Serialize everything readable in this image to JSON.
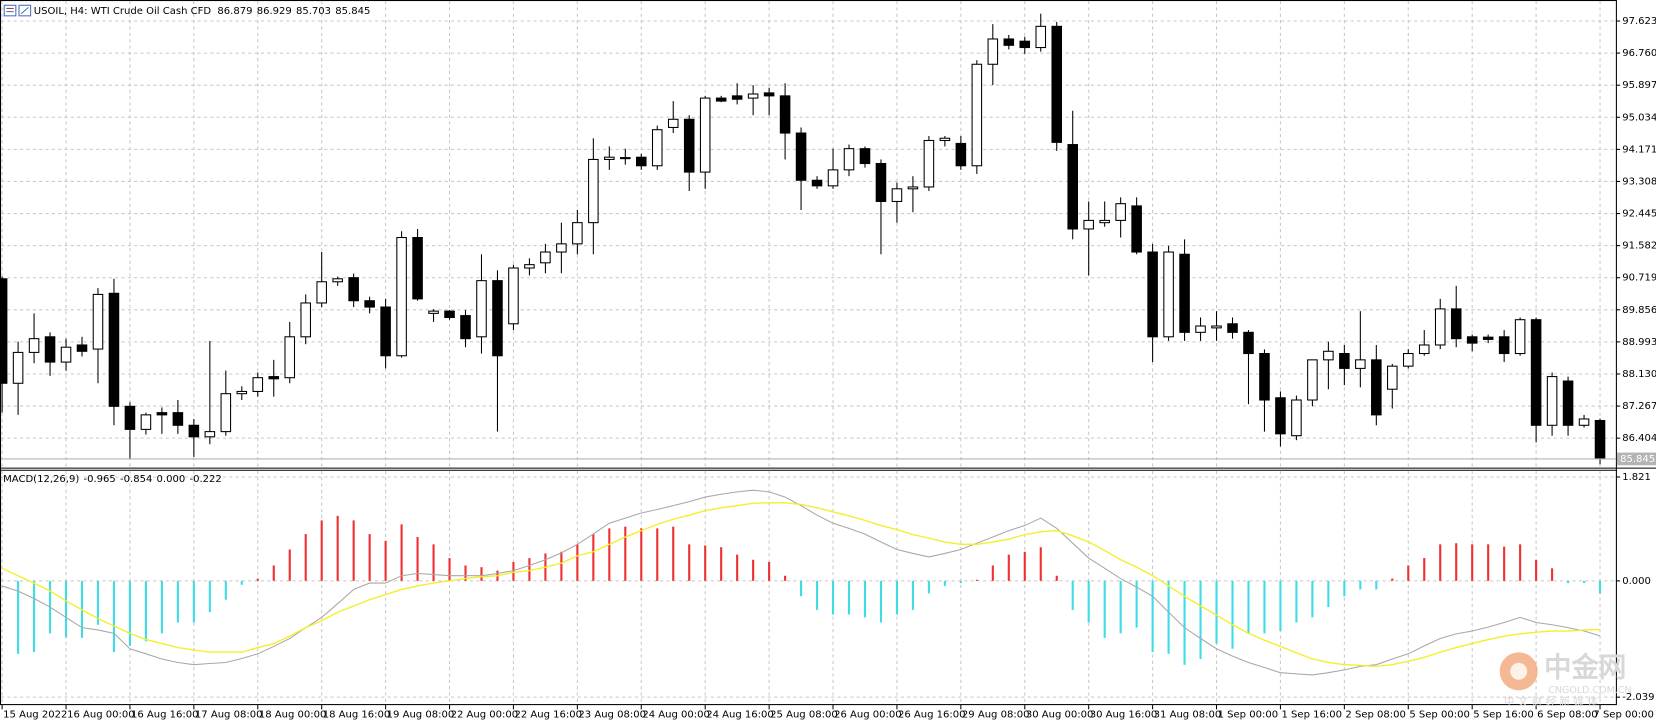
{
  "chart_data": [
    {
      "type": "candlestick",
      "title": "USOIL, H4: WTI Crude Oil Cash CFD",
      "categories": [
        "15 Aug 2022",
        null,
        null,
        null,
        "16 Aug 00:00",
        null,
        null,
        null,
        "16 Aug 16:00",
        null,
        null,
        null,
        "17 Aug 08:00",
        null,
        null,
        null,
        "18 Aug 00:00",
        null,
        null,
        null,
        "18 Aug 16:00",
        null,
        null,
        null,
        "19 Aug 08:00",
        null,
        null,
        null,
        "22 Aug 00:00",
        null,
        null,
        null,
        "22 Aug 16:00",
        null,
        null,
        null,
        "23 Aug 08:00",
        null,
        null,
        null,
        "24 Aug 00:00",
        null,
        null,
        null,
        "24 Aug 16:00",
        null,
        null,
        null,
        "25 Aug 08:00",
        null,
        null,
        null,
        "26 Aug 00:00",
        null,
        null,
        null,
        "26 Aug 16:00",
        null,
        null,
        null,
        "29 Aug 08:00",
        null,
        null,
        null,
        "30 Aug 00:00",
        null,
        null,
        null,
        "30 Aug 16:00",
        null,
        null,
        null,
        "31 Aug 08:00",
        null,
        null,
        null,
        "1 Sep 00:00",
        null,
        null,
        null,
        "1 Sep 16:00",
        null,
        null,
        null,
        "2 Sep 08:00",
        null,
        null,
        null,
        "5 Sep 00:00",
        null,
        null,
        null,
        "5 Sep 16:00",
        null,
        null,
        null,
        "6 Sep 08:00",
        null,
        null,
        null,
        "7 Sep 00:00"
      ],
      "open": [
        90.69,
        87.88,
        88.71,
        89.13,
        88.45,
        88.91,
        88.8,
        90.3,
        87.26,
        86.64,
        87.09,
        87.09,
        86.75,
        86.44,
        86.58,
        87.6,
        87.66,
        88.06,
        88.03,
        89.13,
        90.04,
        90.61,
        90.72,
        90.1,
        89.93,
        88.62,
        91.8,
        89.76,
        89.82,
        89.7,
        89.13,
        90.64,
        89.48,
        90.98,
        91.12,
        91.41,
        91.63,
        92.2,
        93.9,
        93.93,
        93.96,
        93.73,
        94.76,
        94.98,
        93.56,
        95.55,
        95.61,
        95.55,
        95.69,
        95.61,
        94.61,
        93.34,
        93.19,
        93.62,
        94.19,
        93.79,
        92.77,
        93.11,
        93.16,
        94.41,
        94.33,
        93.73,
        96.46,
        97.14,
        97.08,
        96.91,
        97.48,
        94.3,
        92.03,
        92.2,
        92.26,
        92.65,
        91.41,
        89.13,
        91.35,
        89.25,
        89.37,
        89.48,
        89.25,
        88.68,
        87.49,
        86.47,
        87.43,
        88.51,
        88.68,
        88.28,
        88.51,
        87.72,
        88.34,
        88.68,
        88.91,
        89.88,
        89.13,
        89.12,
        89.13,
        88.68,
        89.59,
        86.75,
        87.94,
        86.75,
        86.879
      ],
      "high": [
        90.75,
        89.0,
        89.76,
        89.25,
        89.08,
        89.13,
        90.44,
        90.69,
        87.37,
        87.09,
        87.23,
        87.43,
        86.92,
        89.02,
        88.22,
        87.8,
        88.17,
        88.51,
        89.53,
        90.27,
        91.41,
        90.75,
        90.83,
        90.21,
        90.15,
        91.97,
        92.03,
        89.87,
        89.85,
        89.85,
        91.35,
        90.92,
        91.07,
        91.24,
        91.63,
        92.2,
        92.54,
        94.47,
        94.25,
        94.19,
        94.05,
        94.81,
        95.47,
        95.09,
        95.61,
        95.61,
        95.95,
        95.9,
        95.83,
        95.95,
        94.76,
        93.45,
        94.19,
        94.3,
        94.25,
        93.9,
        93.28,
        93.45,
        94.53,
        94.53,
        94.53,
        96.57,
        97.54,
        97.25,
        97.2,
        97.82,
        97.6,
        95.21,
        92.77,
        92.77,
        92.88,
        92.88,
        91.63,
        91.58,
        91.75,
        89.65,
        89.82,
        89.65,
        89.31,
        88.79,
        87.66,
        87.55,
        88.51,
        89.0,
        88.91,
        89.82,
        88.91,
        88.4,
        88.8,
        89.31,
        90.15,
        90.5,
        89.19,
        89.19,
        89.31,
        89.65,
        89.65,
        88.17,
        88.06,
        87.03,
        86.929
      ],
      "low": [
        87.09,
        87.03,
        88.42,
        88.08,
        88.22,
        88.6,
        87.88,
        86.75,
        85.84,
        86.5,
        86.52,
        86.52,
        85.9,
        86.24,
        86.47,
        87.43,
        87.52,
        87.52,
        87.88,
        88.93,
        89.93,
        90.5,
        89.93,
        89.76,
        88.28,
        88.57,
        90.1,
        89.53,
        89.59,
        88.85,
        88.68,
        86.58,
        89.31,
        90.78,
        90.84,
        90.84,
        91.35,
        91.35,
        93.62,
        93.76,
        93.62,
        93.62,
        94.61,
        93.05,
        93.11,
        95.44,
        95.38,
        95.09,
        95.09,
        93.9,
        92.54,
        93.11,
        93.11,
        93.45,
        93.68,
        91.35,
        92.2,
        92.48,
        93.05,
        94.25,
        93.62,
        93.51,
        95.9,
        96.86,
        96.74,
        96.8,
        94.13,
        91.75,
        90.78,
        92.09,
        91.8,
        91.35,
        88.45,
        89.02,
        89.02,
        89.02,
        89.02,
        89.08,
        87.32,
        86.58,
        86.18,
        86.35,
        87.26,
        87.72,
        87.83,
        87.77,
        86.75,
        87.2,
        88.28,
        88.62,
        88.8,
        88.85,
        88.74,
        88.96,
        88.45,
        88.62,
        86.29,
        86.47,
        86.47,
        86.69,
        85.703
      ],
      "close": [
        87.88,
        88.71,
        89.08,
        88.45,
        88.85,
        88.74,
        90.27,
        87.26,
        86.64,
        87.03,
        87.03,
        86.75,
        86.44,
        86.58,
        87.6,
        87.66,
        88.03,
        88.0,
        89.13,
        90.04,
        90.61,
        90.69,
        90.1,
        89.93,
        88.62,
        91.8,
        90.15,
        89.82,
        89.65,
        89.08,
        90.64,
        88.62,
        90.98,
        91.07,
        91.41,
        91.63,
        92.2,
        93.9,
        93.96,
        93.95,
        93.73,
        94.7,
        94.98,
        93.56,
        95.55,
        95.47,
        95.52,
        95.66,
        95.61,
        94.61,
        93.34,
        93.19,
        93.62,
        94.19,
        93.79,
        92.77,
        93.11,
        93.16,
        94.41,
        94.47,
        93.73,
        96.46,
        97.14,
        96.97,
        96.91,
        97.48,
        94.36,
        92.03,
        92.26,
        92.26,
        92.71,
        91.41,
        89.13,
        91.41,
        89.25,
        89.42,
        89.42,
        89.25,
        88.68,
        87.43,
        86.52,
        87.43,
        88.51,
        88.74,
        88.28,
        88.51,
        87.03,
        88.34,
        88.68,
        88.91,
        89.88,
        89.08,
        88.96,
        89.06,
        88.68,
        89.59,
        86.75,
        88.06,
        86.75,
        86.92,
        85.845
      ],
      "ylim": [
        85.64,
        98.16
      ],
      "yticks": [
        97.623,
        {
          "value": 96.76,
          "label": "96.760"
        },
        95.897,
        95.034,
        94.171,
        93.308,
        92.445,
        91.582,
        90.719,
        89.856,
        88.993,
        {
          "value": 88.13,
          "label": "88.130"
        },
        87.267,
        86.404
      ],
      "grid": true,
      "up_color": "#ffffff",
      "down_color": "#000000",
      "outline_color": "#000000",
      "price_line_color": "#b4b4b4"
    },
    {
      "type": "macd",
      "title": "MACD(12,26,9)",
      "header_extra": "0.000",
      "histogram": [
        null,
        -1.28,
        -1.25,
        -0.92,
        -0.99,
        -1.0,
        -0.77,
        -1.25,
        -1.14,
        -1.06,
        -0.92,
        -0.73,
        -0.73,
        -0.55,
        -0.33,
        -0.07,
        0.04,
        0.27,
        0.55,
        0.82,
        1.06,
        1.14,
        1.06,
        0.82,
        0.7,
        0.99,
        0.77,
        0.64,
        0.4,
        0.27,
        0.24,
        0.18,
        0.33,
        0.4,
        0.48,
        0.51,
        0.64,
        0.82,
        0.92,
        0.95,
        0.92,
        0.92,
        0.95,
        0.64,
        0.62,
        0.59,
        0.46,
        0.37,
        0.33,
        0.09,
        -0.27,
        -0.51,
        -0.59,
        -0.59,
        -0.64,
        -0.73,
        -0.59,
        -0.51,
        -0.22,
        -0.09,
        -0.04,
        0.02,
        0.27,
        0.46,
        0.51,
        0.59,
        0.09,
        -0.51,
        -0.73,
        -1.0,
        -0.92,
        -0.82,
        -1.25,
        -1.28,
        -1.47,
        -1.37,
        -1.1,
        -1.19,
        -0.92,
        -0.92,
        -0.88,
        -0.73,
        -0.64,
        -0.46,
        -0.27,
        -0.15,
        -0.15,
        0.04,
        0.27,
        0.4,
        0.64,
        0.66,
        0.64,
        0.64,
        0.6,
        0.64,
        0.37,
        0.22,
        -0.04,
        -0.04,
        -0.222
      ],
      "macd": [
        -0.09,
        -0.18,
        -0.31,
        -0.46,
        -0.64,
        -0.82,
        -0.86,
        -0.92,
        -1.19,
        -1.28,
        -1.37,
        -1.43,
        -1.47,
        -1.45,
        -1.43,
        -1.36,
        -1.28,
        -1.15,
        -1.01,
        -0.82,
        -0.64,
        -0.4,
        -0.15,
        -0.04,
        -0.04,
        0.09,
        0.13,
        0.11,
        0.09,
        0.09,
        0.09,
        0.13,
        0.18,
        0.27,
        0.37,
        0.49,
        0.64,
        0.82,
        1.01,
        1.1,
        1.19,
        1.25,
        1.32,
        1.39,
        1.47,
        1.52,
        1.56,
        1.59,
        1.56,
        1.47,
        1.32,
        1.15,
        1.01,
        0.92,
        0.82,
        0.68,
        0.55,
        0.48,
        0.42,
        0.48,
        0.55,
        0.66,
        0.77,
        0.88,
        0.97,
        1.1,
        0.92,
        0.66,
        0.4,
        0.22,
        0.04,
        -0.11,
        -0.27,
        -0.55,
        -0.82,
        -1.01,
        -1.19,
        -1.32,
        -1.43,
        -1.52,
        -1.61,
        -1.63,
        -1.65,
        -1.61,
        -1.56,
        -1.5,
        -1.47,
        -1.37,
        -1.28,
        -1.14,
        -1.01,
        -0.93,
        -0.88,
        -0.81,
        -0.73,
        -0.64,
        -0.73,
        -0.77,
        -0.82,
        -0.88,
        -0.965
      ],
      "signal": [
        0.22,
        0.09,
        -0.04,
        -0.18,
        -0.35,
        -0.51,
        -0.66,
        -0.79,
        -0.92,
        -1.03,
        -1.1,
        -1.17,
        -1.21,
        -1.25,
        -1.25,
        -1.25,
        -1.17,
        -1.1,
        -0.97,
        -0.82,
        -0.7,
        -0.55,
        -0.44,
        -0.33,
        -0.24,
        -0.15,
        -0.09,
        -0.04,
        0.0,
        0.04,
        0.07,
        0.09,
        0.15,
        0.18,
        0.24,
        0.31,
        0.44,
        0.51,
        0.64,
        0.77,
        0.88,
        0.99,
        1.08,
        1.15,
        1.23,
        1.28,
        1.32,
        1.36,
        1.37,
        1.37,
        1.34,
        1.28,
        1.21,
        1.14,
        1.06,
        0.97,
        0.9,
        0.81,
        0.75,
        0.68,
        0.64,
        0.64,
        0.68,
        0.73,
        0.81,
        0.86,
        0.88,
        0.79,
        0.68,
        0.53,
        0.37,
        0.24,
        0.09,
        -0.09,
        -0.27,
        -0.44,
        -0.6,
        -0.77,
        -0.92,
        -1.04,
        -1.15,
        -1.26,
        -1.37,
        -1.43,
        -1.47,
        -1.48,
        -1.5,
        -1.47,
        -1.41,
        -1.34,
        -1.25,
        -1.17,
        -1.1,
        -1.03,
        -0.97,
        -0.93,
        -0.9,
        -0.88,
        -0.88,
        -0.86,
        -0.854
      ],
      "ylim": [
        -2.16,
        1.93
      ],
      "yticks": [
        1.821,
        {
          "value": 0,
          "label": "0.000"
        },
        -2.039
      ],
      "grid": true,
      "positive_color": "#f03030",
      "negative_color": "#3fdce6",
      "macd_color": "#a8a8a8",
      "signal_color": "#f5ee2a"
    }
  ],
  "watermark": {
    "name": "中金网",
    "site": "CNGOLD.COM.CN",
    "slogan": "中 文 财 经 新 媒 体"
  }
}
